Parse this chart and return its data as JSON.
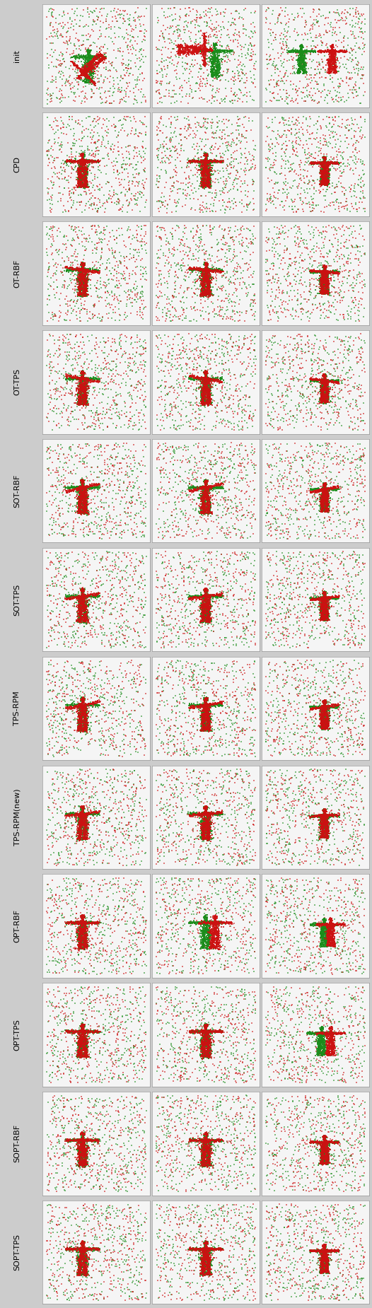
{
  "row_labels": [
    "init",
    "CPD",
    "OT-RBF",
    "OT-TPS",
    "SOT-RBF",
    "SOT-TPS",
    "TPS-RPM",
    "TPS-RPM(new)",
    "OPT-RBF",
    "OPT-TPS",
    "SOPT-RBF",
    "SOPT-TPS"
  ],
  "n_cols": 3,
  "n_rows": 12,
  "fig_width": 5.26,
  "fig_height": 18.5,
  "bg_color": "#cccccc",
  "cell_bg_color": "#f5f5f5",
  "green_color": "#1a8c1a",
  "red_color": "#cc1111",
  "label_fontsize": 8.0
}
